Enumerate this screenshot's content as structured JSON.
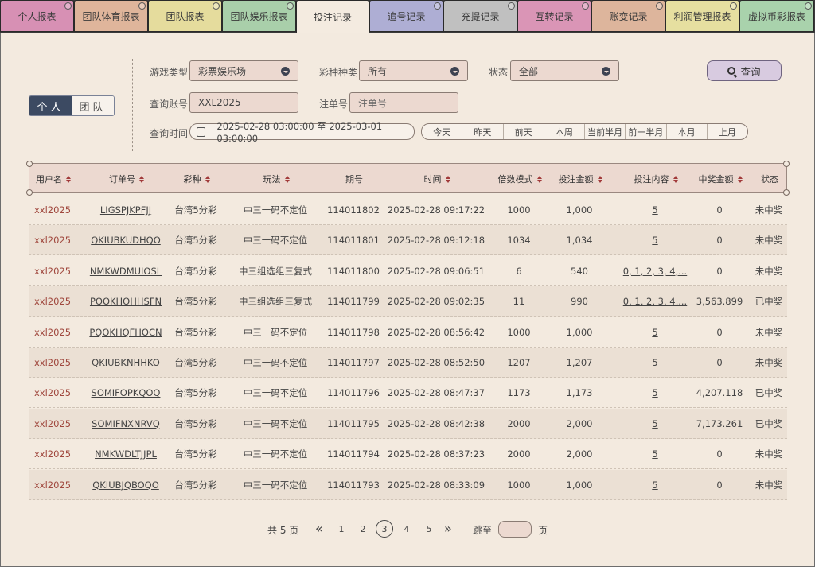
{
  "tabs": [
    {
      "label": "个人报表",
      "color": "#d790b4",
      "active": false
    },
    {
      "label": "团队体育报表",
      "color": "#dfb59b",
      "active": false
    },
    {
      "label": "团队报表",
      "color": "#e5dc9d",
      "active": false
    },
    {
      "label": "团队娱乐报表",
      "color": "#a9cfaa",
      "active": false
    },
    {
      "label": "投注记录",
      "color": "#f4ebe0",
      "active": true
    },
    {
      "label": "追号记录",
      "color": "#aeaed4",
      "active": false
    },
    {
      "label": "充提记录",
      "color": "#c0c0c0",
      "active": false
    },
    {
      "label": "互转记录",
      "color": "#da95b6",
      "active": false
    },
    {
      "label": "账变记录",
      "color": "#ddb59c",
      "active": false
    },
    {
      "label": "利润管理报表",
      "color": "#e6dfa0",
      "active": false
    },
    {
      "label": "虚拟币彩报表",
      "color": "#a9d2ac",
      "active": false
    }
  ],
  "toggle": {
    "personal": "个人",
    "team": "团队"
  },
  "filters": {
    "game_type_label": "游戏类型",
    "game_type_value": "彩票娱乐场",
    "lottery_kind_label": "彩种种类",
    "lottery_kind_value": "所有",
    "status_label": "状态",
    "status_value": "全部",
    "account_label": "查询账号",
    "account_value": "XXL2025",
    "order_label": "注单号",
    "order_placeholder": "注单号",
    "time_label": "查询时间",
    "time_range": "2025-02-28 03:00:00 至 2025-03-01 03:00:00",
    "quick_ranges": [
      "今天",
      "昨天",
      "前天",
      "本周",
      "当前半月",
      "前一半月",
      "本月",
      "上月"
    ],
    "search_button": "查询"
  },
  "table": {
    "headers": [
      "用户名",
      "订单号",
      "彩种",
      "玩法",
      "期号",
      "时间",
      "倍数模式",
      "投注金额",
      "投注内容",
      "中奖金额",
      "状态"
    ],
    "rows": [
      [
        "xxl2025",
        "LIGSPJKPFJJ",
        "台湾5分彩",
        "中三一码不定位",
        "114011802",
        "2025-02-28 09:17:22",
        "1000",
        "1,000",
        "5",
        "0",
        "未中奖"
      ],
      [
        "xxl2025",
        "QKIUBKUDHQO",
        "台湾5分彩",
        "中三一码不定位",
        "114011801",
        "2025-02-28 09:12:18",
        "1034",
        "1,034",
        "5",
        "0",
        "未中奖"
      ],
      [
        "xxl2025",
        "NMKWDMUIOSL",
        "台湾5分彩",
        "中三组选组三复式",
        "114011800",
        "2025-02-28 09:06:51",
        "6",
        "540",
        "0, 1, 2, 3, 4,...",
        "0",
        "未中奖"
      ],
      [
        "xxl2025",
        "PQOKHQHHSFN",
        "台湾5分彩",
        "中三组选组三复式",
        "114011799",
        "2025-02-28 09:02:35",
        "11",
        "990",
        "0, 1, 2, 3, 4,...",
        "3,563.899",
        "已中奖"
      ],
      [
        "xxl2025",
        "PQOKHQFHOCN",
        "台湾5分彩",
        "中三一码不定位",
        "114011798",
        "2025-02-28 08:56:42",
        "1000",
        "1,000",
        "5",
        "0",
        "未中奖"
      ],
      [
        "xxl2025",
        "QKIUBKNHHKO",
        "台湾5分彩",
        "中三一码不定位",
        "114011797",
        "2025-02-28 08:52:50",
        "1207",
        "1,207",
        "5",
        "0",
        "未中奖"
      ],
      [
        "xxl2025",
        "SOMIFOPKQOQ",
        "台湾5分彩",
        "中三一码不定位",
        "114011796",
        "2025-02-28 08:47:37",
        "1173",
        "1,173",
        "5",
        "4,207.118",
        "已中奖"
      ],
      [
        "xxl2025",
        "SOMIFNXNRVQ",
        "台湾5分彩",
        "中三一码不定位",
        "114011795",
        "2025-02-28 08:42:38",
        "2000",
        "2,000",
        "5",
        "7,173.261",
        "已中奖"
      ],
      [
        "xxl2025",
        "NMKWDLTJJPL",
        "台湾5分彩",
        "中三一码不定位",
        "114011794",
        "2025-02-28 08:37:23",
        "2000",
        "2,000",
        "5",
        "0",
        "未中奖"
      ],
      [
        "xxl2025",
        "QKIUBJQBOQO",
        "台湾5分彩",
        "中三一码不定位",
        "114011793",
        "2025-02-28 08:33:09",
        "1000",
        "1,000",
        "5",
        "0",
        "未中奖"
      ]
    ]
  },
  "pagination": {
    "total": "共 5 页",
    "prev": "«",
    "next": "»",
    "pages": [
      "1",
      "2",
      "3",
      "4",
      "5"
    ],
    "current": "3",
    "jump_label": "跳至",
    "page_suffix": "页"
  }
}
